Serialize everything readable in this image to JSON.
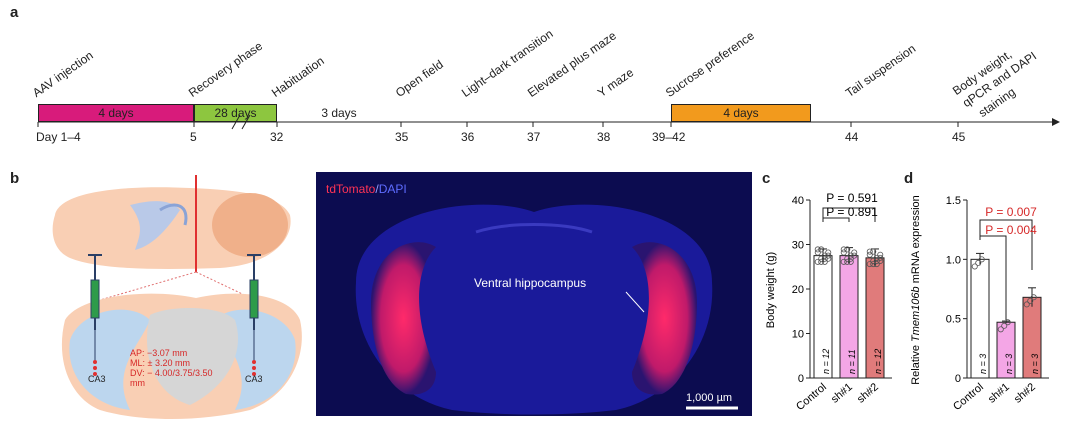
{
  "panel_a": {
    "label": "a",
    "events": [
      {
        "label": "AAV injection"
      },
      {
        "label": "Recovery phase"
      },
      {
        "label": "Habituation"
      },
      {
        "label": "Open field"
      },
      {
        "label": "Light–dark transition"
      },
      {
        "label": "Elevated plus maze"
      },
      {
        "label": "Y maze"
      },
      {
        "label": "Sucrose preference"
      },
      {
        "label": "Tail suspension"
      },
      {
        "label": "Body weight,"
      },
      {
        "label": "qPCR and DAPI"
      },
      {
        "label": "staining"
      }
    ],
    "bars": [
      {
        "label": "4 days",
        "color": "#d81b7b"
      },
      {
        "label": "28 days",
        "color": "#8dc63f"
      },
      {
        "label": "3 days",
        "color": "#ffffff"
      },
      {
        "label": "4 days",
        "color": "#f29a1d"
      }
    ],
    "days": [
      "Day 1–4",
      "5",
      "32",
      "35",
      "36",
      "37",
      "38",
      "39–42",
      "44",
      "45"
    ]
  },
  "panel_b": {
    "label": "b",
    "coords": [
      "AP: −3.07 mm",
      "ML: ± 3.20 mm",
      "DV: − 4.00/3.75/3.50",
      "mm"
    ],
    "ca3_left": "CA3",
    "ca3_right": "CA3",
    "stain_td": "tdTomato",
    "stain_sep": "/",
    "stain_dapi": "DAPI",
    "annotation": "Ventral hippocampus",
    "scale_bar": "1,000 µm"
  },
  "panel_c": {
    "label": "c",
    "ylabel": "Body weight (g)",
    "p1": "P = 0.591",
    "p2": "P = 0.891",
    "yticks": [
      "0",
      "10",
      "20",
      "30",
      "40"
    ]
  },
  "panel_d": {
    "label": "d",
    "ylabel_pre": "Relative ",
    "ylabel_gene": "Tmem106b",
    "ylabel_post": " mRNA expression",
    "p1": "P = 0.007",
    "p2": "P = 0.004",
    "yticks": [
      "0",
      "0.5",
      "1.0",
      "1.5"
    ]
  },
  "chart_data": [
    {
      "type": "bar",
      "categories": [
        "Control",
        "sh#1",
        "sh#2"
      ],
      "values": [
        27.5,
        27.5,
        27.0
      ],
      "errors": [
        1.5,
        1.8,
        2.0
      ],
      "n_labels": [
        "n = 12",
        "n = 11",
        "n = 12"
      ],
      "colors": [
        "#ffffff",
        "#f4a6e6",
        "#e07b7b"
      ],
      "ylim": [
        0,
        40
      ],
      "ylabel": "Body weight (g)"
    },
    {
      "type": "bar",
      "categories": [
        "Control",
        "sh#1",
        "sh#2"
      ],
      "values": [
        1.0,
        0.47,
        0.68
      ],
      "errors": [
        0.05,
        0.01,
        0.08
      ],
      "n_labels": [
        "n = 3",
        "n = 3",
        "n = 3"
      ],
      "colors": [
        "#ffffff",
        "#f4a6e6",
        "#e07b7b"
      ],
      "ylim": [
        0,
        1.5
      ],
      "ylabel": "Relative Tmem106b mRNA expression"
    }
  ]
}
